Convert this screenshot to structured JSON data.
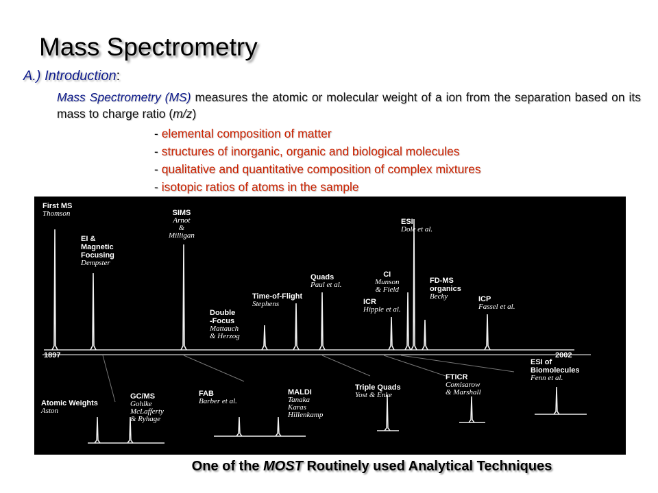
{
  "slide": {
    "title": "Mass Spectrometry",
    "intro_heading": "A.) Introduction",
    "intro_colon": ":",
    "para": {
      "term": "Mass Spectrometry (MS)",
      "text1": " measures the atomic or molecular weight of a ion from the separation based on its mass to charge ratio (",
      "mz": "m/z",
      "text2": ")"
    },
    "bullets": [
      "elemental composition of matter",
      "structures of inorganic, organic and biological molecules",
      "qualitative and quantitative composition of complex mixtures",
      "isotopic ratios of atoms in the sample"
    ],
    "bullet_dash": "- ",
    "footer": {
      "pre": "One of the ",
      "emph": "MOST",
      "post": " Routinely used Analytical Techniques"
    }
  },
  "timeline": {
    "year_start": "1897",
    "year_end": "2002",
    "top_labels": [
      {
        "name": "First MS",
        "who": "Thomson"
      },
      {
        "name": "EI &\nMagnetic\nFocusing",
        "who": "Dempster"
      },
      {
        "name": "SIMS",
        "who": "Arnot\n&\nMilligan"
      },
      {
        "name": "Double\n-Focus",
        "who": "Mattauch\n& Herzog"
      },
      {
        "name": "Time-of-Flight",
        "who": "Stephens"
      },
      {
        "name": "Quads",
        "who": "Paul et al."
      },
      {
        "name": "ICR",
        "who": "Hipple et al."
      },
      {
        "name": "CI",
        "who": "Munson\n& Field"
      },
      {
        "name": "ESI",
        "who": "Dole et al."
      },
      {
        "name": "FD-MS\norganics",
        "who": "Becky"
      },
      {
        "name": "ICP",
        "who": "Fassel et al."
      }
    ],
    "bottom_labels": [
      {
        "name": "Atomic Weights",
        "who": "Aston"
      },
      {
        "name": "GC/MS",
        "who": "Gohlke\nMcLafferty\n& Ryhage"
      },
      {
        "name": "FAB",
        "who": "Barber et al."
      },
      {
        "name": "MALDI",
        "who": "Tanaka\nKaras\nHillenkamp"
      },
      {
        "name": "Triple Quads",
        "who": "Yost & Enke"
      },
      {
        "name": "FTICR",
        "who": "Comisarow\n& Marshall"
      },
      {
        "name": "ESI of\nBiomolecules",
        "who": "Fenn et al."
      }
    ]
  }
}
